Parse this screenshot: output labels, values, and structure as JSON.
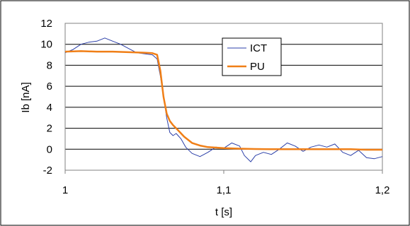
{
  "chart_data": {
    "type": "line",
    "title": "",
    "xlabel": "t [s]",
    "ylabel": "Ib [nA]",
    "xlim": [
      1,
      1.2
    ],
    "ylim": [
      -2,
      12
    ],
    "x_ticks": [
      {
        "value": 1,
        "label": "1"
      },
      {
        "value": 1.1,
        "label": "1,1"
      },
      {
        "value": 1.2,
        "label": "1,2"
      }
    ],
    "y_ticks": [
      {
        "value": -2,
        "label": "-2"
      },
      {
        "value": 0,
        "label": "0"
      },
      {
        "value": 2,
        "label": "2"
      },
      {
        "value": 4,
        "label": "4"
      },
      {
        "value": 6,
        "label": "6"
      },
      {
        "value": 8,
        "label": "8"
      },
      {
        "value": 10,
        "label": "10"
      },
      {
        "value": 12,
        "label": "12"
      }
    ],
    "grid": "horizontal",
    "legend_position": "top-right",
    "series": [
      {
        "name": "ICT",
        "color": "#2B3FA8",
        "x": [
          1.0,
          1.005,
          1.01,
          1.015,
          1.02,
          1.025,
          1.03,
          1.035,
          1.04,
          1.045,
          1.05,
          1.055,
          1.058,
          1.06,
          1.062,
          1.064,
          1.066,
          1.068,
          1.07,
          1.073,
          1.076,
          1.08,
          1.085,
          1.09,
          1.095,
          1.1,
          1.105,
          1.11,
          1.113,
          1.117,
          1.12,
          1.125,
          1.13,
          1.135,
          1.14,
          1.145,
          1.15,
          1.155,
          1.16,
          1.165,
          1.17,
          1.175,
          1.18,
          1.185,
          1.19,
          1.195,
          1.2
        ],
        "y": [
          9.2,
          9.5,
          10.0,
          10.2,
          10.3,
          10.6,
          10.3,
          10.0,
          9.6,
          9.2,
          9.1,
          9.0,
          8.6,
          7.0,
          5.0,
          3.0,
          1.6,
          1.3,
          1.5,
          1.0,
          0.2,
          -0.4,
          -0.7,
          -0.3,
          0.2,
          0.1,
          0.6,
          0.3,
          -0.6,
          -1.2,
          -0.6,
          -0.3,
          -0.5,
          0.0,
          0.6,
          0.3,
          -0.2,
          0.2,
          0.4,
          0.2,
          0.5,
          -0.3,
          -0.6,
          -0.1,
          -0.8,
          -0.9,
          -0.7
        ]
      },
      {
        "name": "PU",
        "color": "#F07F17",
        "x": [
          1.0,
          1.01,
          1.02,
          1.03,
          1.04,
          1.05,
          1.055,
          1.058,
          1.06,
          1.062,
          1.064,
          1.066,
          1.068,
          1.07,
          1.075,
          1.08,
          1.085,
          1.09,
          1.1,
          1.11,
          1.12,
          1.13,
          1.14,
          1.15,
          1.16,
          1.17,
          1.18,
          1.19,
          1.2
        ],
        "y": [
          9.3,
          9.35,
          9.3,
          9.3,
          9.25,
          9.2,
          9.15,
          9.0,
          7.5,
          5.0,
          3.4,
          2.7,
          2.3,
          2.0,
          1.2,
          0.6,
          0.35,
          0.2,
          0.1,
          0.05,
          0.02,
          0.0,
          0.0,
          0.0,
          0.0,
          0.0,
          0.0,
          -0.05,
          -0.05
        ]
      }
    ]
  }
}
